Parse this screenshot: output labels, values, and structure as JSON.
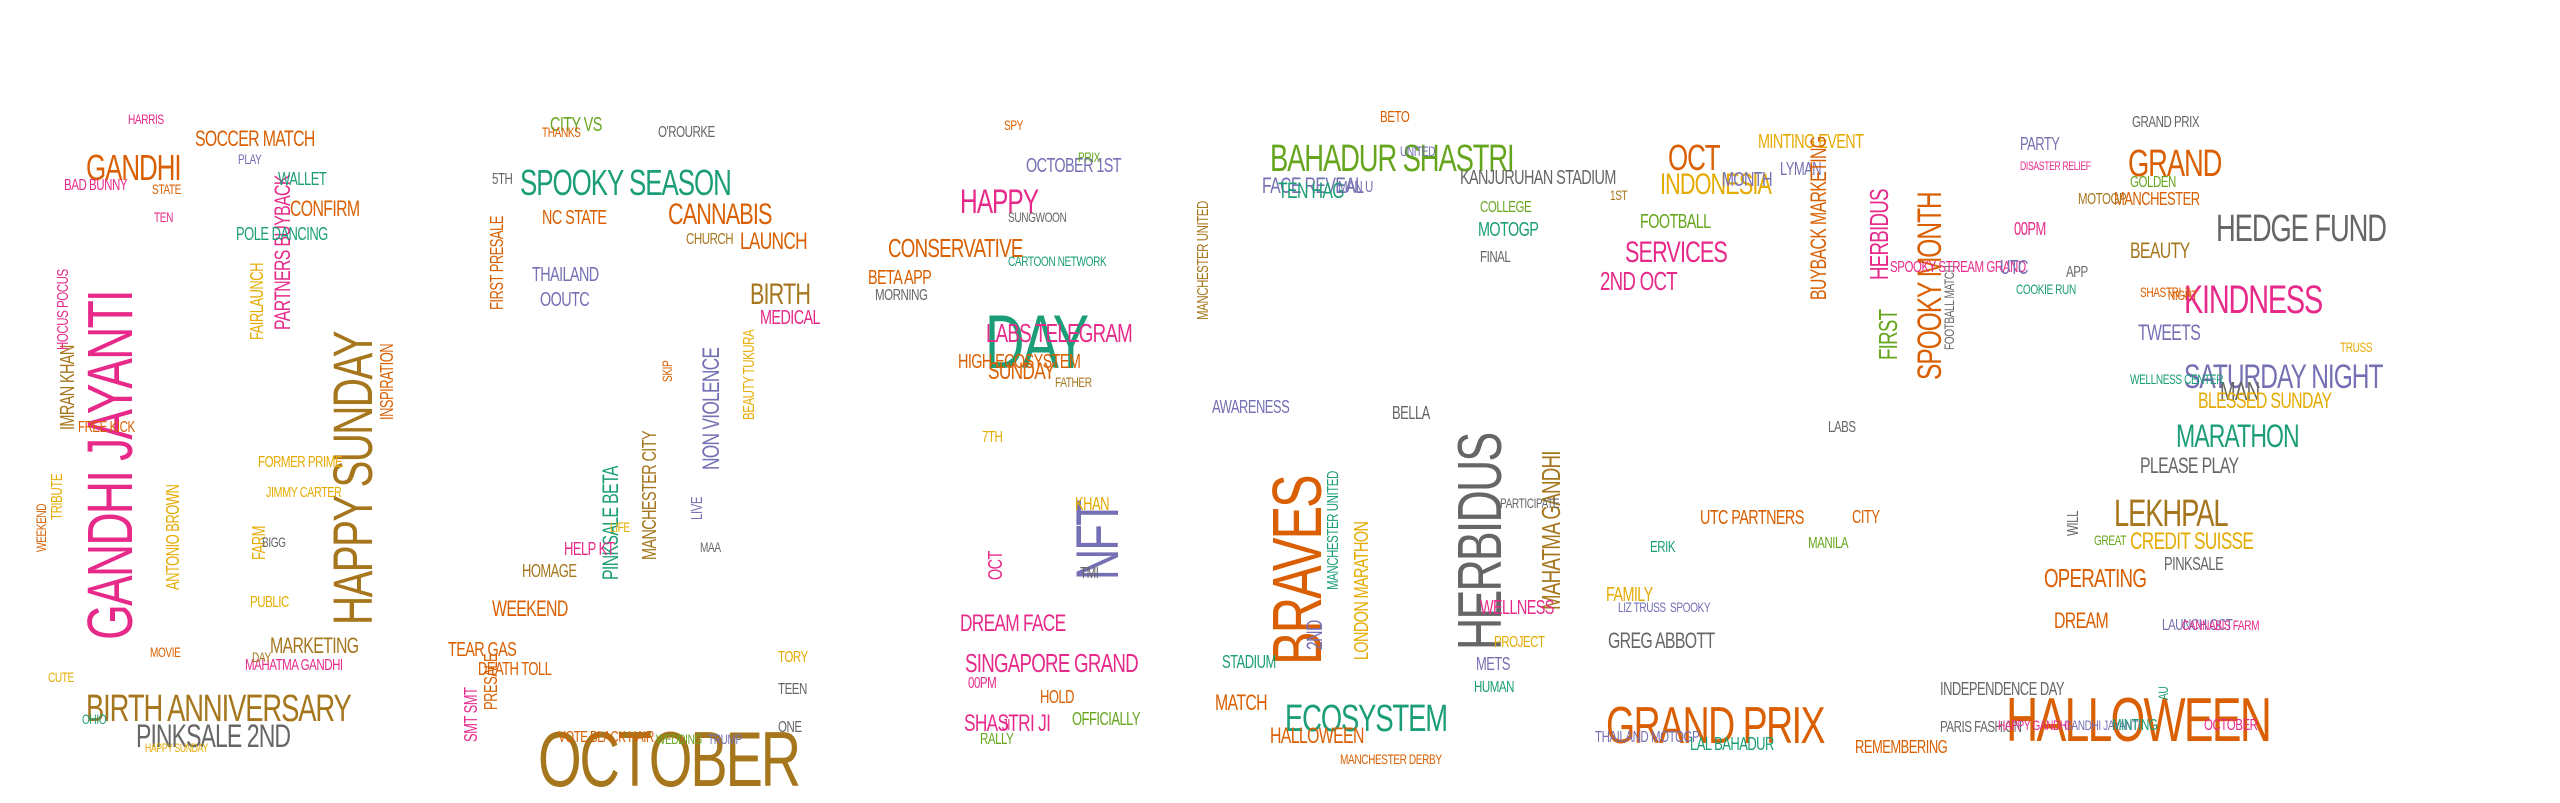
{
  "palette": {
    "teal": "#1b9e77",
    "orange": "#d95f02",
    "purple": "#7570b3",
    "magenta": "#e7298a",
    "green": "#66a61e",
    "gold": "#e6ab02",
    "brown": "#a6761d",
    "gray": "#666666"
  },
  "words": [
    {
      "t": "GANDHI JAYANTI",
      "c": "magenta"
    },
    {
      "t": "BIRTH ANNIVERSARY",
      "c": "brown"
    },
    {
      "t": "PINKSALE 2ND",
      "c": "gray"
    },
    {
      "t": "HAPPY SUNDAY",
      "c": "brown"
    },
    {
      "t": "GANDHI",
      "c": "orange"
    },
    {
      "t": "SOCCER MATCH",
      "c": "orange"
    },
    {
      "t": "PARTNERS BUYBACK",
      "c": "magenta"
    },
    {
      "t": "FAIRLAUNCH",
      "c": "gold"
    },
    {
      "t": "CONFIRM",
      "c": "orange"
    },
    {
      "t": "POLE DANCING",
      "c": "teal"
    },
    {
      "t": "WALLET",
      "c": "teal"
    },
    {
      "t": "INSPIRATION",
      "c": "orange"
    },
    {
      "t": "FORMER PRIME",
      "c": "gold"
    },
    {
      "t": "JIMMY CARTER",
      "c": "gold"
    },
    {
      "t": "MARKETING",
      "c": "brown"
    },
    {
      "t": "MAHATMA GANDHI",
      "c": "magenta"
    },
    {
      "t": "ANTONIO BROWN",
      "c": "gold"
    },
    {
      "t": "IMRAN KHAN",
      "c": "brown"
    },
    {
      "t": "FREE KICK",
      "c": "orange"
    },
    {
      "t": "TRIBUTE",
      "c": "gold"
    },
    {
      "t": "BAD BUNNY",
      "c": "magenta"
    },
    {
      "t": "HOCUS POCUS",
      "c": "magenta"
    },
    {
      "t": "HAPPY SUNDAY",
      "c": "gold"
    },
    {
      "t": "OHIO",
      "c": "teal"
    },
    {
      "t": "CUTE",
      "c": "gold"
    },
    {
      "t": "HARRIS",
      "c": "magenta"
    },
    {
      "t": "PLAY",
      "c": "purple"
    },
    {
      "t": "STATE",
      "c": "orange"
    },
    {
      "t": "TEN",
      "c": "magenta"
    },
    {
      "t": "FARM",
      "c": "gold"
    },
    {
      "t": "PUBLIC",
      "c": "gold"
    },
    {
      "t": "MOVIE",
      "c": "orange"
    },
    {
      "t": "DAY",
      "c": "brown"
    },
    {
      "t": "BIGG",
      "c": "gray"
    },
    {
      "t": "WEEKEND",
      "c": "orange"
    },
    {
      "t": "SPOOKY SEASON",
      "c": "teal"
    },
    {
      "t": "CITY VS",
      "c": "green"
    },
    {
      "t": "THANKS",
      "c": "orange"
    },
    {
      "t": "O'ROURKE",
      "c": "gray"
    },
    {
      "t": "CANNABIS",
      "c": "orange"
    },
    {
      "t": "LAUNCH",
      "c": "orange"
    },
    {
      "t": "CHURCH",
      "c": "brown"
    },
    {
      "t": "BIRTH",
      "c": "brown"
    },
    {
      "t": "MEDICAL",
      "c": "magenta"
    },
    {
      "t": "THAILAND",
      "c": "purple"
    },
    {
      "t": "NC STATE",
      "c": "orange"
    },
    {
      "t": "OOUTC",
      "c": "purple"
    },
    {
      "t": "FIRST PRESALE",
      "c": "orange"
    },
    {
      "t": "NON VIOLENCE",
      "c": "purple"
    },
    {
      "t": "BEAUTY TUKURA",
      "c": "gold"
    },
    {
      "t": "MANCHESTER CITY",
      "c": "brown"
    },
    {
      "t": "PINKSALE BETA",
      "c": "teal"
    },
    {
      "t": "HELP KT",
      "c": "magenta"
    },
    {
      "t": "HOMAGE",
      "c": "brown"
    },
    {
      "t": "WEEKEND",
      "c": "orange"
    },
    {
      "t": "TEAR GAS",
      "c": "orange"
    },
    {
      "t": "DEATH TOLL",
      "c": "orange"
    },
    {
      "t": "PRESALE",
      "c": "orange"
    },
    {
      "t": "SMT SMT",
      "c": "magenta"
    },
    {
      "t": "OCTOBER",
      "c": "brown"
    },
    {
      "t": "TORY",
      "c": "gold"
    },
    {
      "t": "TEEN",
      "c": "gray"
    },
    {
      "t": "ONE",
      "c": "gray"
    },
    {
      "t": "VOTE",
      "c": "orange"
    },
    {
      "t": "BLACK HAIR",
      "c": "orange"
    },
    {
      "t": "WEDDING",
      "c": "green"
    },
    {
      "t": "TRUMP",
      "c": "purple"
    },
    {
      "t": "LIVE",
      "c": "purple"
    },
    {
      "t": "MAA",
      "c": "gray"
    },
    {
      "t": "LIFE",
      "c": "gold"
    },
    {
      "t": "SKIP",
      "c": "orange"
    },
    {
      "t": "5TH",
      "c": "gray"
    },
    {
      "t": "DAY",
      "c": "teal"
    },
    {
      "t": "HAPPY",
      "c": "magenta"
    },
    {
      "t": "OCTOBER 1ST",
      "c": "purple"
    },
    {
      "t": "PRIX",
      "c": "green"
    },
    {
      "t": "SPY",
      "c": "orange"
    },
    {
      "t": "SUNGWOON",
      "c": "gray"
    },
    {
      "t": "CONSERVATIVE",
      "c": "orange"
    },
    {
      "t": "BETA APP",
      "c": "orange"
    },
    {
      "t": "MORNING",
      "c": "gray"
    },
    {
      "t": "LABS TELEGRAM",
      "c": "magenta"
    },
    {
      "t": "SUNDAY",
      "c": "orange"
    },
    {
      "t": "FATHER",
      "c": "brown"
    },
    {
      "t": "HIGH ECOSYSTEM",
      "c": "orange"
    },
    {
      "t": "NFT",
      "c": "purple"
    },
    {
      "t": "OCT",
      "c": "magenta"
    },
    {
      "t": "DREAM FACE",
      "c": "magenta"
    },
    {
      "t": "SINGAPORE GRAND",
      "c": "magenta"
    },
    {
      "t": "SHASTRI JI",
      "c": "magenta"
    },
    {
      "t": "00PM",
      "c": "magenta"
    },
    {
      "t": "JI",
      "c": "magenta"
    },
    {
      "t": "7TH",
      "c": "gold"
    },
    {
      "t": "KHAN",
      "c": "gold"
    },
    {
      "t": "TMI",
      "c": "gray"
    },
    {
      "t": "HOLD",
      "c": "orange"
    },
    {
      "t": "OFFICIALLY",
      "c": "green"
    },
    {
      "t": "RALLY",
      "c": "green"
    },
    {
      "t": "CARTOON NETWORK",
      "c": "teal"
    },
    {
      "t": "BRAVES",
      "c": "orange"
    },
    {
      "t": "BAHADUR SHASTRI",
      "c": "green"
    },
    {
      "t": "FACE REVEAL",
      "c": "purple"
    },
    {
      "t": "TEN HAG",
      "c": "teal"
    },
    {
      "t": "MAN U",
      "c": "purple"
    },
    {
      "t": "2ND",
      "c": "purple"
    },
    {
      "t": "LONDON MARATHON",
      "c": "gold"
    },
    {
      "t": "MANCHESTER UNITED",
      "c": "teal"
    },
    {
      "t": "MANCHESTER UNITED",
      "c": "brown"
    },
    {
      "t": "AWARENESS",
      "c": "purple"
    },
    {
      "t": "STADIUM",
      "c": "teal"
    },
    {
      "t": "MATCH",
      "c": "orange"
    },
    {
      "t": "ECOSYSTEM",
      "c": "teal"
    },
    {
      "t": "HALLOWEEN",
      "c": "orange"
    },
    {
      "t": "MANCHESTER DERBY",
      "c": "orange"
    },
    {
      "t": "HERBIDUS",
      "c": "gray"
    },
    {
      "t": "MAHATMA GANDHI",
      "c": "brown"
    },
    {
      "t": "KANJURUHAN STADIUM",
      "c": "gray"
    },
    {
      "t": "UNITED",
      "c": "purple"
    },
    {
      "t": "MOTOGP",
      "c": "teal"
    },
    {
      "t": "COLLEGE",
      "c": "green"
    },
    {
      "t": "FINAL",
      "c": "gray"
    },
    {
      "t": "BELLA",
      "c": "gray"
    },
    {
      "t": "WELLNESS",
      "c": "magenta"
    },
    {
      "t": "PROJECT",
      "c": "gold"
    },
    {
      "t": "METS",
      "c": "purple"
    },
    {
      "t": "HUMAN",
      "c": "teal"
    },
    {
      "t": "BETO",
      "c": "orange"
    },
    {
      "t": "PARTICIPATE",
      "c": "gray"
    },
    {
      "t": "OCT",
      "c": "orange"
    },
    {
      "t": "INDONESIA",
      "c": "gold"
    },
    {
      "t": "MONTH",
      "c": "purple"
    },
    {
      "t": "MINTING EVENT",
      "c": "gold"
    },
    {
      "t": "LYMAN",
      "c": "purple"
    },
    {
      "t": "SERVICES",
      "c": "magenta"
    },
    {
      "t": "2ND OCT",
      "c": "magenta"
    },
    {
      "t": "FOOTBALL",
      "c": "green"
    },
    {
      "t": "FIRST",
      "c": "green"
    },
    {
      "t": "HERBIDUS",
      "c": "magenta"
    },
    {
      "t": "SPOOKY MONTH",
      "c": "orange"
    },
    {
      "t": "FOOTBALL MATCH",
      "c": "gray"
    },
    {
      "t": "BUYBACK MARKETING",
      "c": "orange"
    },
    {
      "t": "SPOOKY STREAM GRAND",
      "c": "magenta"
    },
    {
      "t": "UTC PARTNERS",
      "c": "orange"
    },
    {
      "t": "ERIK",
      "c": "teal"
    },
    {
      "t": "CITY",
      "c": "orange"
    },
    {
      "t": "MANILA",
      "c": "green"
    },
    {
      "t": "FAMILY",
      "c": "gold"
    },
    {
      "t": "SPOOKY",
      "c": "purple"
    },
    {
      "t": "LIZ TRUSS",
      "c": "purple"
    },
    {
      "t": "GREG ABBOTT",
      "c": "gray"
    },
    {
      "t": "GRAND PRIX",
      "c": "orange"
    },
    {
      "t": "THAILAND MOTOGP",
      "c": "purple"
    },
    {
      "t": "LAL BAHADUR",
      "c": "teal"
    },
    {
      "t": "REMEMBERING",
      "c": "orange"
    },
    {
      "t": "INDEPENDENCE DAY",
      "c": "gray"
    },
    {
      "t": "PARIS FASHION",
      "c": "gray"
    },
    {
      "t": "LABS",
      "c": "gray"
    },
    {
      "t": "1ST",
      "c": "brown"
    },
    {
      "t": "GRAND",
      "c": "orange"
    },
    {
      "t": "PARTY",
      "c": "purple"
    },
    {
      "t": "GRAND PRIX",
      "c": "gray"
    },
    {
      "t": "GOLDEN",
      "c": "green"
    },
    {
      "t": "HEDGE FUND",
      "c": "gray"
    },
    {
      "t": "MANCHESTER",
      "c": "orange"
    },
    {
      "t": "MOTOGP",
      "c": "brown"
    },
    {
      "t": "00PM",
      "c": "magenta"
    },
    {
      "t": "UTC",
      "c": "purple"
    },
    {
      "t": "COOKIE RUN",
      "c": "teal"
    },
    {
      "t": "APP",
      "c": "gray"
    },
    {
      "t": "BEAUTY",
      "c": "brown"
    },
    {
      "t": "KINDNESS",
      "c": "magenta"
    },
    {
      "t": "TWEETS",
      "c": "purple"
    },
    {
      "t": "SATURDAY NIGHT",
      "c": "purple"
    },
    {
      "t": "MAN",
      "c": "gray"
    },
    {
      "t": "BLESSED SUNDAY",
      "c": "gold"
    },
    {
      "t": "MARATHON",
      "c": "teal"
    },
    {
      "t": "PLEASE PLAY",
      "c": "gray"
    },
    {
      "t": "LEKHPAL",
      "c": "brown"
    },
    {
      "t": "CREDIT SUISSE",
      "c": "gold"
    },
    {
      "t": "PINKSALE",
      "c": "gray"
    },
    {
      "t": "OPERATING",
      "c": "orange"
    },
    {
      "t": "DREAM",
      "c": "orange"
    },
    {
      "t": "LAUNCH OCT",
      "c": "purple"
    },
    {
      "t": "CANNABIS FARM",
      "c": "magenta"
    },
    {
      "t": "HALLOWEEN",
      "c": "orange"
    },
    {
      "t": "GANDHI JAYANTI",
      "c": "purple"
    },
    {
      "t": "HAPPY GANDHI",
      "c": "magenta"
    },
    {
      "t": "MINTING",
      "c": "teal"
    },
    {
      "t": "OCTOBER",
      "c": "magenta"
    },
    {
      "t": "WELLNESS CENTER",
      "c": "teal"
    },
    {
      "t": "DISASTER RELIEF",
      "c": "magenta"
    },
    {
      "t": "GREAT",
      "c": "green"
    },
    {
      "t": "NIGHT",
      "c": "orange"
    },
    {
      "t": "SHASTRI JI",
      "c": "orange"
    },
    {
      "t": "TRUSS",
      "c": "gold"
    },
    {
      "t": "WILL",
      "c": "gray"
    },
    {
      "t": "AU",
      "c": "teal"
    },
    {
      "t": "NON",
      "c": "orange"
    },
    {
      "t": "SPOOKY STADIUM",
      "c": "teal"
    }
  ]
}
